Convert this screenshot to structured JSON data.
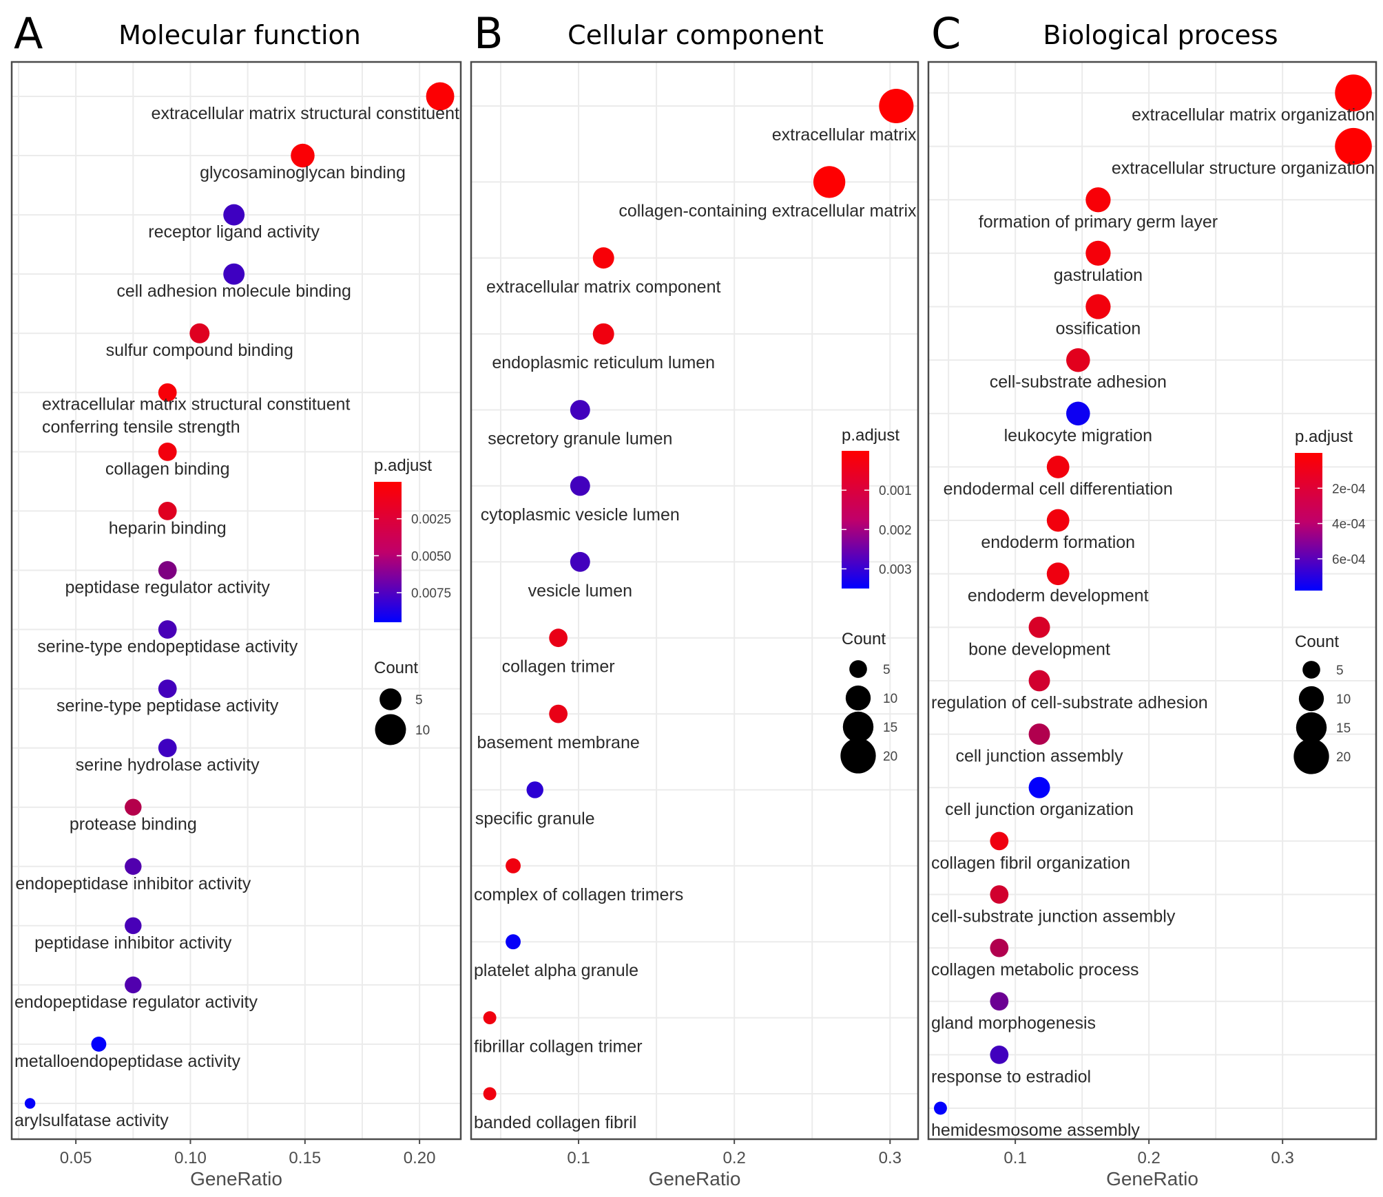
{
  "chart_data": [
    {
      "type": "scatter",
      "panel_label": "A",
      "title": "Molecular function",
      "xlabel": "GeneRatio",
      "ylabel": "",
      "xlim": [
        0.022,
        0.218
      ],
      "xticks": [
        0.05,
        0.1,
        0.15,
        0.2
      ],
      "xtick_labels": [
        "0.05",
        "0.10",
        "0.15",
        "0.20"
      ],
      "grid": true,
      "legend_placement": "right",
      "color_legend": {
        "title": "p.adjust",
        "range": [
          0.0,
          0.0095
        ],
        "ticks": [
          0.0025,
          0.005,
          0.0075
        ],
        "tick_labels": [
          "0.0025",
          "0.0050",
          "0.0075"
        ],
        "low_color": "#ff0000",
        "high_color": "#0000ff"
      },
      "size_legend": {
        "title": "Count",
        "values": [
          5,
          10
        ],
        "labels": [
          "5",
          "10"
        ]
      },
      "terms": [
        {
          "label": "extracellular matrix structural constituent",
          "gene_ratio": 0.209,
          "count": 14,
          "p_adjust": 0.0001
        },
        {
          "label": "glycosaminoglycan binding",
          "gene_ratio": 0.149,
          "count": 10,
          "p_adjust": 0.0002
        },
        {
          "label": "receptor ligand activity",
          "gene_ratio": 0.119,
          "count": 8,
          "p_adjust": 0.0072
        },
        {
          "label": "cell adhesion molecule binding",
          "gene_ratio": 0.119,
          "count": 8,
          "p_adjust": 0.0072
        },
        {
          "label": "sulfur compound binding",
          "gene_ratio": 0.104,
          "count": 7,
          "p_adjust": 0.0012
        },
        {
          "label": "extracellular matrix structural constituent conferring tensile strength",
          "gene_ratio": 0.09,
          "count": 6,
          "p_adjust": 0.0003
        },
        {
          "label": "collagen binding",
          "gene_ratio": 0.09,
          "count": 6,
          "p_adjust": 0.0005
        },
        {
          "label": "heparin binding",
          "gene_ratio": 0.09,
          "count": 6,
          "p_adjust": 0.0012
        },
        {
          "label": "peptidase regulator activity",
          "gene_ratio": 0.09,
          "count": 6,
          "p_adjust": 0.0048
        },
        {
          "label": "serine-type endopeptidase activity",
          "gene_ratio": 0.09,
          "count": 6,
          "p_adjust": 0.0068
        },
        {
          "label": "serine-type peptidase activity",
          "gene_ratio": 0.09,
          "count": 6,
          "p_adjust": 0.007
        },
        {
          "label": "serine hydrolase activity",
          "gene_ratio": 0.09,
          "count": 6,
          "p_adjust": 0.0072
        },
        {
          "label": "protease binding",
          "gene_ratio": 0.075,
          "count": 5,
          "p_adjust": 0.0028
        },
        {
          "label": "endopeptidase inhibitor activity",
          "gene_ratio": 0.075,
          "count": 5,
          "p_adjust": 0.0065
        },
        {
          "label": "peptidase inhibitor activity",
          "gene_ratio": 0.075,
          "count": 5,
          "p_adjust": 0.0068
        },
        {
          "label": "endopeptidase regulator activity",
          "gene_ratio": 0.075,
          "count": 5,
          "p_adjust": 0.0065
        },
        {
          "label": "metalloendopeptidase activity",
          "gene_ratio": 0.06,
          "count": 4,
          "p_adjust": 0.0094
        },
        {
          "label": "arylsulfatase activity",
          "gene_ratio": 0.03,
          "count": 2,
          "p_adjust": 0.0093
        }
      ]
    },
    {
      "type": "scatter",
      "panel_label": "B",
      "title": "Cellular component",
      "xlabel": "GeneRatio",
      "ylabel": "",
      "xlim": [
        0.031,
        0.318
      ],
      "xticks": [
        0.1,
        0.2,
        0.3
      ],
      "xtick_labels": [
        "0.1",
        "0.2",
        "0.3"
      ],
      "grid": true,
      "legend_placement": "right",
      "color_legend": {
        "title": "p.adjust",
        "range": [
          0.0,
          0.0035
        ],
        "ticks": [
          0.001,
          0.002,
          0.003
        ],
        "tick_labels": [
          "0.001",
          "0.002",
          "0.003"
        ],
        "low_color": "#ff0000",
        "high_color": "#0000ff"
      },
      "size_legend": {
        "title": "Count",
        "values": [
          5,
          10,
          15,
          20
        ],
        "labels": [
          "5",
          "10",
          "15",
          "20"
        ]
      },
      "terms": [
        {
          "label": "extracellular matrix",
          "gene_ratio": 0.304,
          "count": 21,
          "p_adjust": 1e-05
        },
        {
          "label": "collagen-containing extracellular matrix",
          "gene_ratio": 0.261,
          "count": 18,
          "p_adjust": 1e-05
        },
        {
          "label": "extracellular matrix component",
          "gene_ratio": 0.116,
          "count": 8,
          "p_adjust": 0.0001
        },
        {
          "label": "endoplasmic reticulum lumen",
          "gene_ratio": 0.116,
          "count": 8,
          "p_adjust": 0.0002
        },
        {
          "label": "secretory granule lumen",
          "gene_ratio": 0.101,
          "count": 7,
          "p_adjust": 0.0026
        },
        {
          "label": "cytoplasmic vesicle lumen",
          "gene_ratio": 0.101,
          "count": 7,
          "p_adjust": 0.0026
        },
        {
          "label": "vesicle lumen",
          "gene_ratio": 0.101,
          "count": 7,
          "p_adjust": 0.0026
        },
        {
          "label": "collagen trimer",
          "gene_ratio": 0.087,
          "count": 6,
          "p_adjust": 0.0003
        },
        {
          "label": "basement membrane",
          "gene_ratio": 0.087,
          "count": 6,
          "p_adjust": 0.0003
        },
        {
          "label": "specific granule",
          "gene_ratio": 0.072,
          "count": 5,
          "p_adjust": 0.0029
        },
        {
          "label": "complex of collagen trimers",
          "gene_ratio": 0.058,
          "count": 4,
          "p_adjust": 0.0002
        },
        {
          "label": "platelet alpha granule",
          "gene_ratio": 0.058,
          "count": 4,
          "p_adjust": 0.0034
        },
        {
          "label": "fibrillar collagen trimer",
          "gene_ratio": 0.043,
          "count": 3,
          "p_adjust": 0.0002
        },
        {
          "label": "banded collagen fibril",
          "gene_ratio": 0.043,
          "count": 3,
          "p_adjust": 0.0002
        }
      ]
    },
    {
      "type": "scatter",
      "panel_label": "C",
      "title": "Biological process",
      "xlabel": "GeneRatio",
      "ylabel": "",
      "xlim": [
        0.035,
        0.37
      ],
      "xticks": [
        0.1,
        0.2,
        0.3
      ],
      "xtick_labels": [
        "0.1",
        "0.2",
        "0.3"
      ],
      "grid": true,
      "legend_placement": "right",
      "color_legend": {
        "title": "p.adjust",
        "range": [
          0.0,
          0.00078
        ],
        "ticks": [
          0.0002,
          0.0004,
          0.0006
        ],
        "tick_labels": [
          "2e-04",
          "4e-04",
          "6e-04"
        ],
        "low_color": "#ff0000",
        "high_color": "#0000ff"
      },
      "size_legend": {
        "title": "Count",
        "values": [
          5,
          10,
          15,
          20
        ],
        "labels": [
          "5",
          "10",
          "15",
          "20"
        ]
      },
      "terms": [
        {
          "label": "extracellular matrix organization",
          "gene_ratio": 0.353,
          "count": 24,
          "p_adjust": 1e-06
        },
        {
          "label": "extracellular structure organization",
          "gene_ratio": 0.353,
          "count": 24,
          "p_adjust": 1e-06
        },
        {
          "label": "formation of primary germ layer",
          "gene_ratio": 0.162,
          "count": 11,
          "p_adjust": 2e-05
        },
        {
          "label": "gastrulation",
          "gene_ratio": 0.162,
          "count": 11,
          "p_adjust": 3e-05
        },
        {
          "label": "ossification",
          "gene_ratio": 0.162,
          "count": 11,
          "p_adjust": 4e-05
        },
        {
          "label": "cell-substrate adhesion",
          "gene_ratio": 0.147,
          "count": 10,
          "p_adjust": 9e-05
        },
        {
          "label": "leukocyte migration",
          "gene_ratio": 0.147,
          "count": 10,
          "p_adjust": 0.00074
        },
        {
          "label": "endodermal cell differentiation",
          "gene_ratio": 0.132,
          "count": 9,
          "p_adjust": 4e-05
        },
        {
          "label": "endoderm formation",
          "gene_ratio": 0.132,
          "count": 9,
          "p_adjust": 4e-05
        },
        {
          "label": "endoderm development",
          "gene_ratio": 0.132,
          "count": 9,
          "p_adjust": 5e-05
        },
        {
          "label": "bone development",
          "gene_ratio": 0.118,
          "count": 8,
          "p_adjust": 0.00012
        },
        {
          "label": "regulation of cell-substrate adhesion",
          "gene_ratio": 0.118,
          "count": 8,
          "p_adjust": 0.00014
        },
        {
          "label": "cell junction assembly",
          "gene_ratio": 0.118,
          "count": 8,
          "p_adjust": 0.00024
        },
        {
          "label": "cell junction organization",
          "gene_ratio": 0.118,
          "count": 8,
          "p_adjust": 0.00077
        },
        {
          "label": "collagen fibril organization",
          "gene_ratio": 0.088,
          "count": 6,
          "p_adjust": 5e-05
        },
        {
          "label": "cell-substrate junction assembly",
          "gene_ratio": 0.088,
          "count": 6,
          "p_adjust": 0.00014
        },
        {
          "label": "collagen metabolic process",
          "gene_ratio": 0.088,
          "count": 6,
          "p_adjust": 0.00024
        },
        {
          "label": "gland morphogenesis",
          "gene_ratio": 0.088,
          "count": 6,
          "p_adjust": 0.00045
        },
        {
          "label": "response to estradiol",
          "gene_ratio": 0.088,
          "count": 6,
          "p_adjust": 0.00058
        },
        {
          "label": "hemidesmosome assembly",
          "gene_ratio": 0.044,
          "count": 3,
          "p_adjust": 0.00077
        }
      ]
    }
  ]
}
